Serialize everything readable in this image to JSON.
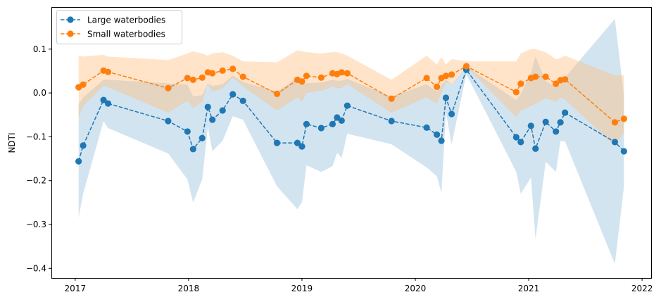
{
  "chart_data": {
    "type": "line",
    "title": "",
    "xlabel": "",
    "ylabel": "NDTI",
    "xlim": [
      2016.79,
      2022.08
    ],
    "ylim": [
      -0.422,
      0.196
    ],
    "xticks": [
      2017,
      2018,
      2019,
      2020,
      2021,
      2022
    ],
    "xtick_labels": [
      "2017",
      "2018",
      "2019",
      "2020",
      "2021",
      "2022"
    ],
    "yticks": [
      0.1,
      0.0,
      -0.1,
      -0.2,
      -0.3,
      -0.4
    ],
    "ytick_labels": [
      "0.1",
      "0.0",
      "−0.1",
      "−0.2",
      "−0.3",
      "−0.4"
    ],
    "grid": false,
    "legend_position": "top-left",
    "x": [
      2017.03,
      2017.07,
      2017.25,
      2017.29,
      2017.82,
      2017.99,
      2018.04,
      2018.12,
      2018.17,
      2018.21,
      2018.3,
      2018.39,
      2018.48,
      2018.78,
      2018.96,
      2019.0,
      2019.04,
      2019.17,
      2019.27,
      2019.31,
      2019.35,
      2019.4,
      2019.79,
      2020.1,
      2020.19,
      2020.23,
      2020.27,
      2020.32,
      2020.45,
      2020.89,
      2020.93,
      2021.02,
      2021.06,
      2021.15,
      2021.24,
      2021.28,
      2021.32,
      2021.76,
      2021.84
    ],
    "series": [
      {
        "name": "Large waterbodies",
        "color": "#1f77b4",
        "band_color": "#1f77b4",
        "values": [
          -0.156,
          -0.12,
          -0.016,
          -0.024,
          -0.064,
          -0.088,
          -0.128,
          -0.103,
          -0.032,
          -0.061,
          -0.04,
          -0.003,
          -0.018,
          -0.114,
          -0.114,
          -0.122,
          -0.071,
          -0.08,
          -0.071,
          -0.056,
          -0.063,
          -0.029,
          -0.064,
          -0.079,
          -0.095,
          -0.109,
          -0.011,
          -0.048,
          0.053,
          -0.101,
          -0.112,
          -0.075,
          -0.127,
          -0.066,
          -0.088,
          -0.067,
          -0.045,
          -0.112,
          -0.133
        ],
        "band_upper": [
          -0.026,
          -0.01,
          0.03,
          0.03,
          0.022,
          0.019,
          -0.008,
          -0.005,
          0.022,
          0.016,
          0.02,
          0.04,
          0.025,
          0.003,
          0.035,
          0.02,
          0.022,
          0.024,
          0.03,
          0.028,
          0.028,
          0.032,
          -0.008,
          0.02,
          0.003,
          0.018,
          0.03,
          0.02,
          0.06,
          -0.016,
          -0.002,
          0.046,
          0.083,
          0.027,
          0.014,
          0.018,
          0.035,
          0.169,
          -0.005
        ],
        "band_lower": [
          -0.285,
          -0.23,
          -0.064,
          -0.08,
          -0.138,
          -0.197,
          -0.25,
          -0.197,
          -0.077,
          -0.133,
          -0.109,
          -0.053,
          -0.061,
          -0.213,
          -0.265,
          -0.249,
          -0.165,
          -0.18,
          -0.167,
          -0.136,
          -0.148,
          -0.093,
          -0.117,
          -0.17,
          -0.19,
          -0.228,
          -0.045,
          -0.117,
          0.043,
          -0.18,
          -0.23,
          -0.193,
          -0.334,
          -0.157,
          -0.18,
          -0.11,
          -0.11,
          -0.39,
          -0.214
        ]
      },
      {
        "name": "Small waterbodies",
        "color": "#ff7f0e",
        "band_color": "#ffbb78",
        "values": [
          0.013,
          0.019,
          0.051,
          0.048,
          0.011,
          0.034,
          0.03,
          0.035,
          0.047,
          0.045,
          0.051,
          0.055,
          0.037,
          -0.002,
          0.03,
          0.026,
          0.039,
          0.035,
          0.045,
          0.043,
          0.047,
          0.045,
          -0.013,
          0.034,
          0.014,
          0.034,
          0.039,
          0.042,
          0.061,
          0.002,
          0.021,
          0.034,
          0.037,
          0.037,
          0.021,
          0.029,
          0.031,
          -0.067,
          -0.059
        ],
        "band_upper": [
          0.085,
          0.083,
          0.087,
          0.083,
          0.075,
          0.09,
          0.095,
          0.09,
          0.085,
          0.09,
          0.093,
          0.085,
          0.072,
          0.07,
          0.097,
          0.095,
          0.093,
          0.09,
          0.093,
          0.093,
          0.09,
          0.085,
          0.03,
          0.085,
          0.065,
          0.082,
          0.065,
          0.077,
          0.072,
          0.072,
          0.09,
          0.1,
          0.1,
          0.093,
          0.077,
          0.08,
          0.085,
          0.04,
          0.04
        ],
        "band_lower": [
          -0.055,
          -0.03,
          0.016,
          0.013,
          -0.045,
          -0.018,
          -0.034,
          -0.02,
          0.022,
          0.003,
          0.01,
          0.035,
          0.015,
          -0.04,
          -0.01,
          -0.02,
          0.0,
          0.005,
          0.015,
          0.01,
          0.012,
          0.02,
          -0.045,
          -0.01,
          -0.025,
          0.0,
          0.025,
          0.02,
          0.06,
          -0.055,
          -0.04,
          -0.03,
          -0.025,
          -0.012,
          -0.02,
          -0.01,
          -0.015,
          -0.12,
          -0.09
        ]
      }
    ]
  }
}
